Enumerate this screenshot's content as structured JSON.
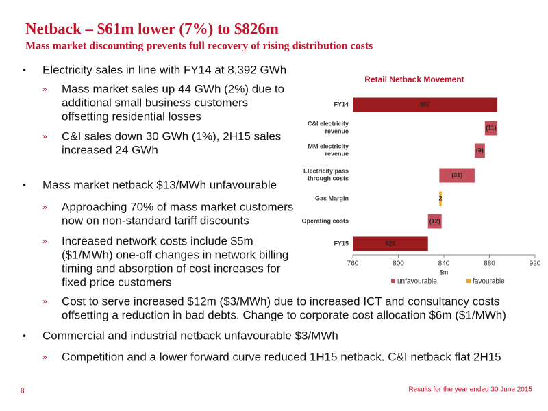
{
  "header": {
    "title": "Netback – $61m lower (7%) to $826m",
    "subtitle": "Mass market discounting prevents full recovery of rising distribution costs"
  },
  "bullets": [
    {
      "lines": [
        "Electricity sales in line with FY14 at 8,392 GWh"
      ],
      "sub": [
        {
          "lines": [
            "Mass market sales up 44 GWh (2%) due to",
            "additional small business customers",
            "offsetting residential losses"
          ]
        },
        {
          "lines": [
            "C&I sales down 30 GWh (1%), 2H15 sales",
            "increased 24 GWh"
          ]
        }
      ]
    },
    {
      "lines": [
        "Mass market netback $13/MWh unfavourable"
      ],
      "sub": [
        {
          "lines": [
            "Approaching 70% of mass market customers",
            "now on non-standard tariff discounts"
          ]
        },
        {
          "lines": [
            "Increased network costs include $5m",
            "($1/MWh) one-off changes in network billing",
            "timing and absorption of cost increases for",
            "fixed price customers"
          ]
        },
        {
          "lines": [
            "Cost to serve increased $12m ($3/MWh) due to increased ICT and consultancy costs",
            "offsetting a reduction in bad debts. Change to corporate cost allocation $6m ($1/MWh)"
          ]
        }
      ]
    },
    {
      "lines": [
        "Commercial and industrial netback unfavourable $3/MWh"
      ],
      "sub": [
        {
          "lines": [
            "Competition and a lower forward curve reduced 1H15 netback. C&I netback flat 2H15"
          ]
        }
      ]
    }
  ],
  "chart_data": {
    "type": "waterfall",
    "title": "Retail Netback Movement",
    "categories": [
      "FY14",
      "C&I electricity revenue",
      "MM electricity revenue",
      "Electricity pass through costs",
      "Gas Margin",
      "Operating costs",
      "FY15"
    ],
    "values": [
      887,
      -11,
      -9,
      -31,
      2,
      -12,
      826
    ],
    "value_labels": [
      "887",
      "(11)",
      "(9)",
      "(31)",
      "2",
      "(12)",
      "826"
    ],
    "total_color": "#9b1b1f",
    "series": [
      {
        "name": "unfavourable",
        "color": "#c2505a"
      },
      {
        "name": "favourable",
        "color": "#f5a42a"
      }
    ],
    "xlabel": "$m",
    "xlim": [
      760,
      920
    ],
    "xticks": [
      760,
      800,
      840,
      880,
      920
    ]
  },
  "footer": {
    "page": "8",
    "text": "Results for the year ended 30 June 2015"
  }
}
